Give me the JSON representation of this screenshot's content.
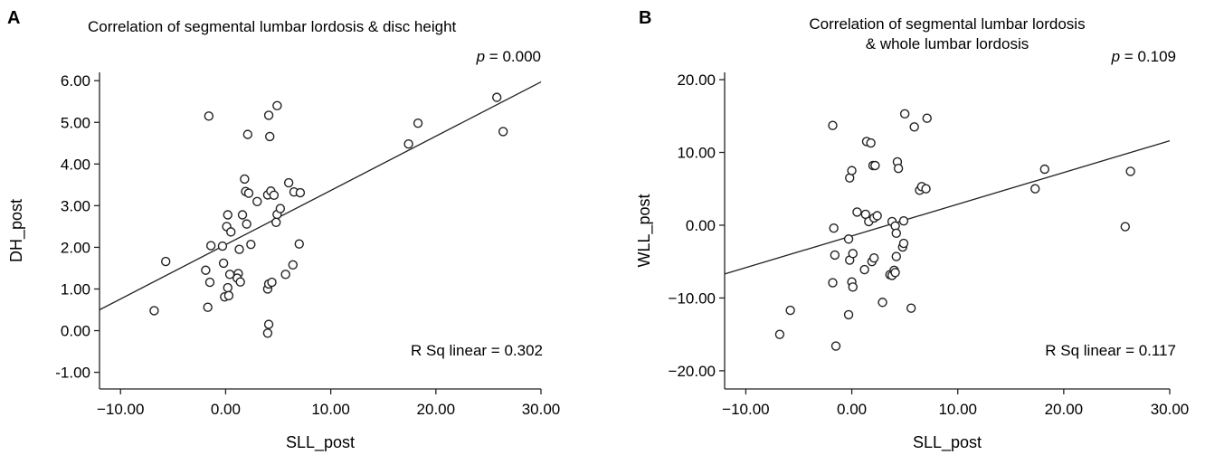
{
  "chart_data": [
    {
      "type": "scatter",
      "panel_letter": "A",
      "title": "Correlation of segmental lumbar lordosis & disc height",
      "xlabel": "SLL_post",
      "ylabel": "DH_post",
      "xlim": [
        -12,
        30
      ],
      "ylim": [
        -1.4,
        6.2
      ],
      "xticks": [
        -10,
        0,
        10,
        20,
        30
      ],
      "xtick_labels": [
        "−10.00",
        "0.00",
        "10.00",
        "20.00",
        "30.00"
      ],
      "yticks": [
        -1,
        0,
        1,
        2,
        3,
        4,
        5,
        6
      ],
      "ytick_labels": [
        "-1.00",
        "0.00",
        "1.00",
        "2.00",
        "3.00",
        "4.00",
        "5.00",
        "6.00"
      ],
      "p_label": "p",
      "p_value": " = 0.000",
      "r2_text": "R Sq linear = 0.302",
      "fit_line": {
        "x": [
          -12,
          30
        ],
        "y": [
          0.5,
          5.97
        ]
      },
      "grid": false,
      "points": [
        [
          -6.8,
          0.48
        ],
        [
          -5.7,
          1.66
        ],
        [
          -1.6,
          5.15
        ],
        [
          -1.9,
          1.45
        ],
        [
          -1.5,
          1.16
        ],
        [
          -1.7,
          0.56
        ],
        [
          -1.4,
          2.04
        ],
        [
          -0.3,
          2.03
        ],
        [
          -0.2,
          1.62
        ],
        [
          0.1,
          2.5
        ],
        [
          0.2,
          2.78
        ],
        [
          0.5,
          2.37
        ],
        [
          0.2,
          1.03
        ],
        [
          0.4,
          1.35
        ],
        [
          -0.1,
          0.81
        ],
        [
          0.3,
          0.84
        ],
        [
          1.2,
          1.37
        ],
        [
          1.1,
          1.26
        ],
        [
          1.4,
          1.17
        ],
        [
          1.3,
          1.95
        ],
        [
          1.6,
          2.78
        ],
        [
          1.8,
          3.64
        ],
        [
          1.9,
          3.34
        ],
        [
          2.2,
          3.3
        ],
        [
          2.0,
          2.56
        ],
        [
          2.4,
          2.07
        ],
        [
          2.1,
          4.71
        ],
        [
          3.0,
          3.1
        ],
        [
          4.0,
          3.26
        ],
        [
          4.3,
          3.35
        ],
        [
          4.6,
          3.25
        ],
        [
          4.1,
          5.17
        ],
        [
          4.9,
          5.4
        ],
        [
          4.2,
          4.66
        ],
        [
          4.9,
          2.79
        ],
        [
          4.8,
          2.6
        ],
        [
          5.2,
          2.93
        ],
        [
          4.0,
          1.0
        ],
        [
          4.1,
          1.12
        ],
        [
          4.4,
          1.16
        ],
        [
          4.1,
          0.15
        ],
        [
          4.0,
          -0.06
        ],
        [
          5.7,
          1.35
        ],
        [
          6.0,
          3.55
        ],
        [
          6.4,
          1.58
        ],
        [
          6.5,
          3.33
        ],
        [
          7.1,
          3.31
        ],
        [
          7.0,
          2.08
        ],
        [
          17.4,
          4.48
        ],
        [
          18.3,
          4.98
        ],
        [
          25.8,
          5.6
        ],
        [
          26.4,
          4.78
        ]
      ]
    },
    {
      "type": "scatter",
      "panel_letter": "B",
      "title": "Correlation of segmental lumbar lordosis",
      "title_line2": "& whole lumbar lordosis",
      "xlabel": "SLL_post",
      "ylabel": "WLL_post",
      "xlim": [
        -12,
        30
      ],
      "ylim": [
        -22.5,
        21
      ],
      "xticks": [
        -10,
        0,
        10,
        20,
        30
      ],
      "xtick_labels": [
        "−10.00",
        "0.00",
        "10.00",
        "20.00",
        "30.00"
      ],
      "yticks": [
        -20,
        -10,
        0,
        10,
        20
      ],
      "ytick_labels": [
        "−20.00",
        "−10.00",
        "0.00",
        "10.00",
        "20.00"
      ],
      "p_label": "p",
      "p_value": " = 0.109",
      "r2_text": "R Sq linear = 0.117",
      "fit_line": {
        "x": [
          -12,
          30
        ],
        "y": [
          -6.7,
          11.6
        ]
      },
      "grid": false,
      "points": [
        [
          -6.8,
          -15.0
        ],
        [
          -5.8,
          -11.7
        ],
        [
          -1.8,
          13.7
        ],
        [
          -1.7,
          -0.4
        ],
        [
          -1.6,
          -4.1
        ],
        [
          -1.8,
          -7.9
        ],
        [
          -1.5,
          -16.6
        ],
        [
          -0.3,
          -12.3
        ],
        [
          -0.3,
          -1.9
        ],
        [
          -0.2,
          -4.8
        ],
        [
          -0.2,
          6.5
        ],
        [
          0.0,
          7.5
        ],
        [
          0.1,
          -3.9
        ],
        [
          0.0,
          -7.8
        ],
        [
          0.1,
          -8.5
        ],
        [
          0.5,
          1.8
        ],
        [
          1.3,
          1.5
        ],
        [
          1.2,
          -6.1
        ],
        [
          1.4,
          11.5
        ],
        [
          1.8,
          11.3
        ],
        [
          1.6,
          0.5
        ],
        [
          1.9,
          -5.0
        ],
        [
          2.1,
          -4.5
        ],
        [
          2.0,
          8.2
        ],
        [
          2.2,
          8.2
        ],
        [
          2.1,
          1.0
        ],
        [
          2.4,
          1.3
        ],
        [
          2.9,
          -10.6
        ],
        [
          3.6,
          -6.8
        ],
        [
          3.8,
          -6.9
        ],
        [
          4.0,
          -6.2
        ],
        [
          3.8,
          0.5
        ],
        [
          4.1,
          -0.1
        ],
        [
          4.2,
          -1.1
        ],
        [
          4.1,
          -6.5
        ],
        [
          4.3,
          8.7
        ],
        [
          4.4,
          7.8
        ],
        [
          4.2,
          -4.3
        ],
        [
          4.8,
          -3.0
        ],
        [
          4.9,
          -2.5
        ],
        [
          4.9,
          0.6
        ],
        [
          5.0,
          15.3
        ],
        [
          5.6,
          -11.4
        ],
        [
          5.9,
          13.5
        ],
        [
          6.4,
          4.8
        ],
        [
          6.6,
          5.3
        ],
        [
          7.0,
          5.0
        ],
        [
          7.1,
          14.7
        ],
        [
          17.3,
          5.0
        ],
        [
          18.2,
          7.7
        ],
        [
          25.8,
          -0.2
        ],
        [
          26.3,
          7.4
        ]
      ]
    }
  ]
}
